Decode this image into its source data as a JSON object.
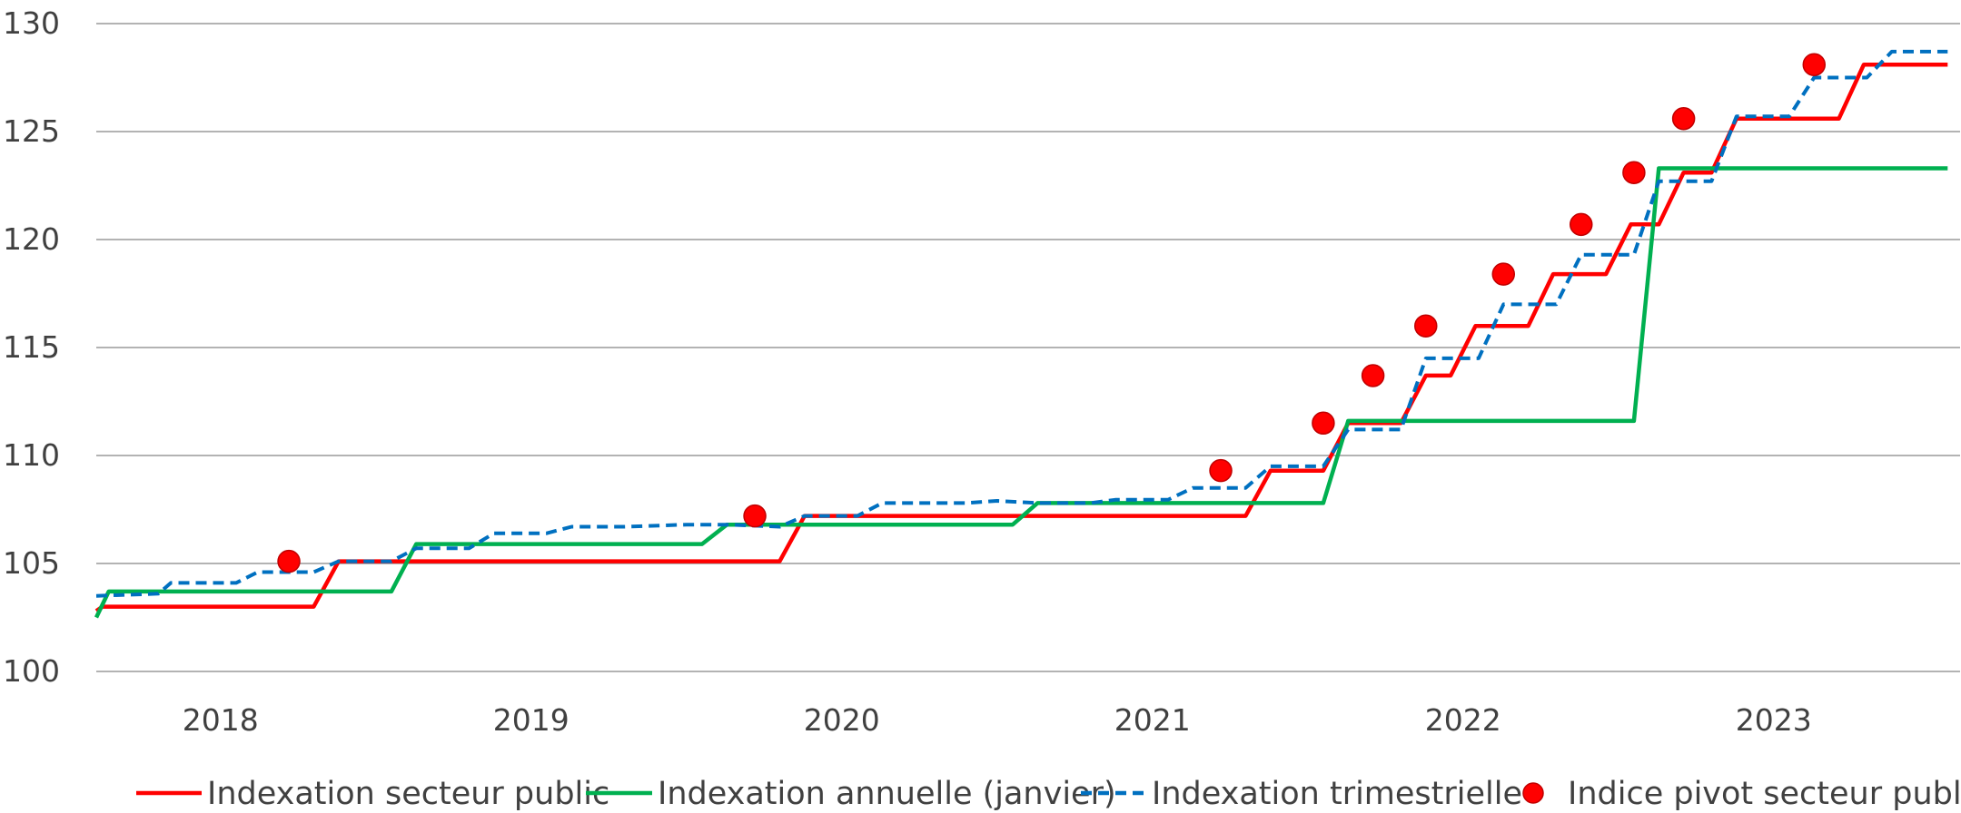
{
  "chart_data": {
    "type": "line",
    "title": "",
    "xlabel": "",
    "ylabel": "",
    "ylim": [
      100,
      130
    ],
    "yticks": [
      "100",
      "105",
      "110",
      "115",
      "120",
      "125",
      "130"
    ],
    "xlim": [
      2017.6,
      2023.6
    ],
    "xticks": [
      {
        "label": "2018",
        "x": 2018.0
      },
      {
        "label": "2019",
        "x": 2019.0
      },
      {
        "label": "2020",
        "x": 2020.0
      },
      {
        "label": "2021",
        "x": 2021.0
      },
      {
        "label": "2022",
        "x": 2022.0
      },
      {
        "label": "2023",
        "x": 2023.0
      }
    ],
    "grid": "horizontal",
    "legend_position": "bottom",
    "series": [
      {
        "name": "Indexation secteur public",
        "kind": "line",
        "color": "#ff0000",
        "dash": "solid",
        "points": [
          [
            2017.6,
            102.8
          ],
          [
            2017.62,
            103.0
          ],
          [
            2018.3,
            103.0
          ],
          [
            2018.38,
            105.1
          ],
          [
            2019.8,
            105.1
          ],
          [
            2019.88,
            107.2
          ],
          [
            2021.3,
            107.2
          ],
          [
            2021.38,
            109.3
          ],
          [
            2021.55,
            109.3
          ],
          [
            2021.63,
            111.5
          ],
          [
            2021.8,
            111.5
          ],
          [
            2021.88,
            113.7
          ],
          [
            2021.96,
            113.7
          ],
          [
            2022.04,
            116.0
          ],
          [
            2022.21,
            116.0
          ],
          [
            2022.29,
            118.4
          ],
          [
            2022.46,
            118.4
          ],
          [
            2022.54,
            120.7
          ],
          [
            2022.63,
            120.7
          ],
          [
            2022.71,
            123.1
          ],
          [
            2022.8,
            123.1
          ],
          [
            2022.88,
            125.6
          ],
          [
            2023.21,
            125.6
          ],
          [
            2023.29,
            128.1
          ],
          [
            2023.56,
            128.1
          ]
        ]
      },
      {
        "name": "Indexation annuelle (janvier)",
        "kind": "line",
        "color": "#00b050",
        "dash": "solid",
        "points": [
          [
            2017.6,
            102.5
          ],
          [
            2017.64,
            103.7
          ],
          [
            2018.55,
            103.7
          ],
          [
            2018.63,
            105.9
          ],
          [
            2019.55,
            105.9
          ],
          [
            2019.63,
            106.8
          ],
          [
            2020.55,
            106.8
          ],
          [
            2020.63,
            107.8
          ],
          [
            2021.55,
            107.8
          ],
          [
            2021.63,
            111.6
          ],
          [
            2022.55,
            111.6
          ],
          [
            2022.63,
            123.3
          ],
          [
            2023.56,
            123.3
          ]
        ]
      },
      {
        "name": "Indexation trimestrielle",
        "kind": "line",
        "color": "#0070c0",
        "dash": "dashed",
        "points": [
          [
            2017.6,
            103.5
          ],
          [
            2017.8,
            103.6
          ],
          [
            2017.84,
            104.1
          ],
          [
            2018.05,
            104.1
          ],
          [
            2018.12,
            104.6
          ],
          [
            2018.3,
            104.6
          ],
          [
            2018.38,
            105.1
          ],
          [
            2018.55,
            105.1
          ],
          [
            2018.63,
            105.7
          ],
          [
            2018.8,
            105.7
          ],
          [
            2018.88,
            106.4
          ],
          [
            2019.05,
            106.4
          ],
          [
            2019.13,
            106.7
          ],
          [
            2019.3,
            106.7
          ],
          [
            2019.5,
            106.8
          ],
          [
            2019.63,
            106.8
          ],
          [
            2019.8,
            106.7
          ],
          [
            2019.88,
            107.2
          ],
          [
            2020.05,
            107.2
          ],
          [
            2020.13,
            107.8
          ],
          [
            2020.4,
            107.8
          ],
          [
            2020.5,
            107.9
          ],
          [
            2020.63,
            107.8
          ],
          [
            2020.8,
            107.8
          ],
          [
            2020.88,
            107.95
          ],
          [
            2021.05,
            107.95
          ],
          [
            2021.13,
            108.5
          ],
          [
            2021.3,
            108.5
          ],
          [
            2021.38,
            109.5
          ],
          [
            2021.55,
            109.5
          ],
          [
            2021.63,
            111.2
          ],
          [
            2021.8,
            111.2
          ],
          [
            2021.88,
            114.5
          ],
          [
            2022.05,
            114.5
          ],
          [
            2022.13,
            117.0
          ],
          [
            2022.3,
            117.0
          ],
          [
            2022.38,
            119.3
          ],
          [
            2022.55,
            119.3
          ],
          [
            2022.63,
            122.7
          ],
          [
            2022.8,
            122.7
          ],
          [
            2022.88,
            125.7
          ],
          [
            2023.05,
            125.7
          ],
          [
            2023.13,
            127.5
          ],
          [
            2023.3,
            127.5
          ],
          [
            2023.38,
            128.7
          ],
          [
            2023.56,
            128.7
          ]
        ]
      },
      {
        "name": "Indice pivot secteur public",
        "kind": "scatter",
        "color": "#ff0000",
        "points": [
          [
            2018.22,
            105.1
          ],
          [
            2019.72,
            107.2
          ],
          [
            2021.22,
            109.3
          ],
          [
            2021.55,
            111.5
          ],
          [
            2021.71,
            113.7
          ],
          [
            2021.88,
            116.0
          ],
          [
            2022.13,
            118.4
          ],
          [
            2022.38,
            120.7
          ],
          [
            2022.55,
            123.1
          ],
          [
            2022.71,
            125.6
          ],
          [
            2023.13,
            128.1
          ]
        ]
      }
    ]
  }
}
